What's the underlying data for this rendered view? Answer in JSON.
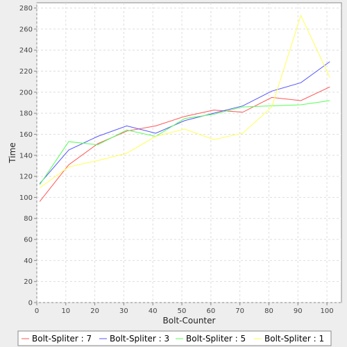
{
  "chart_data": {
    "type": "line",
    "title": "",
    "xlabel": "Bolt-Counter",
    "ylabel": "Time",
    "xlim": [
      0,
      105
    ],
    "ylim": [
      0,
      285
    ],
    "xticks": [
      0,
      10,
      20,
      30,
      40,
      50,
      60,
      70,
      80,
      90,
      100
    ],
    "yticks": [
      0,
      20,
      40,
      60,
      80,
      100,
      120,
      140,
      160,
      180,
      200,
      220,
      240,
      260,
      280
    ],
    "grid": true,
    "legend_position": "bottom",
    "x": [
      1,
      11,
      21,
      31,
      41,
      51,
      61,
      71,
      81,
      91,
      101
    ],
    "series": [
      {
        "name": "Bolt-Spliter : 7",
        "color": "#ff5555",
        "values": [
          96,
          131,
          151,
          163,
          168,
          177,
          183,
          181,
          195,
          192,
          205
        ]
      },
      {
        "name": "Bolt-Spliter : 3",
        "color": "#5555ff",
        "values": [
          113,
          145,
          158,
          168,
          161,
          173,
          180,
          187,
          201,
          209,
          229
        ]
      },
      {
        "name": "Bolt-Spliter : 5",
        "color": "#55ff55",
        "values": [
          112,
          153,
          150,
          164,
          158,
          175,
          179,
          186,
          187,
          188,
          192
        ]
      },
      {
        "name": "Bolt-Spliter : 1",
        "color": "#ffff55",
        "values": [
          109,
          129,
          135,
          142,
          158,
          165,
          155,
          161,
          186,
          273,
          214
        ]
      }
    ]
  }
}
